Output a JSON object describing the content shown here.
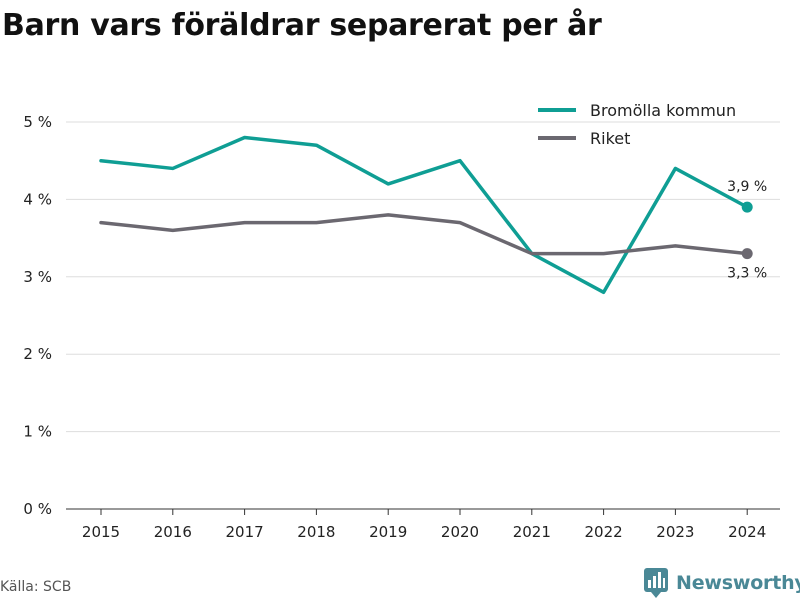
{
  "chart_data": {
    "type": "line",
    "title": "Barn vars föräldrar separerat per år",
    "xlabel": "",
    "ylabel": "",
    "categories": [
      "2015",
      "2016",
      "2017",
      "2018",
      "2019",
      "2020",
      "2021",
      "2022",
      "2023",
      "2024"
    ],
    "ylim": [
      0,
      5
    ],
    "yticks": [
      0,
      1,
      2,
      3,
      4,
      5
    ],
    "ytick_labels": [
      "0 %",
      "1 %",
      "2 %",
      "3 %",
      "4 %",
      "5 %"
    ],
    "grid": "horizontal",
    "legend_position": "top-right",
    "series": [
      {
        "name": "Bromölla kommun",
        "color": "#0f9e94",
        "values": [
          4.5,
          4.4,
          4.8,
          4.7,
          4.2,
          4.5,
          3.3,
          2.8,
          4.4,
          3.9
        ],
        "end_label": "3,9 %"
      },
      {
        "name": "Riket",
        "color": "#6b6870",
        "values": [
          3.7,
          3.6,
          3.7,
          3.7,
          3.8,
          3.7,
          3.3,
          3.3,
          3.4,
          3.3
        ],
        "end_label": "3,3 %"
      }
    ]
  },
  "footer": {
    "source": "Källa: SCB",
    "brand": "Newsworthy",
    "brand_icon": "newsworthy-logo-icon",
    "brand_color": "#4a8896"
  }
}
